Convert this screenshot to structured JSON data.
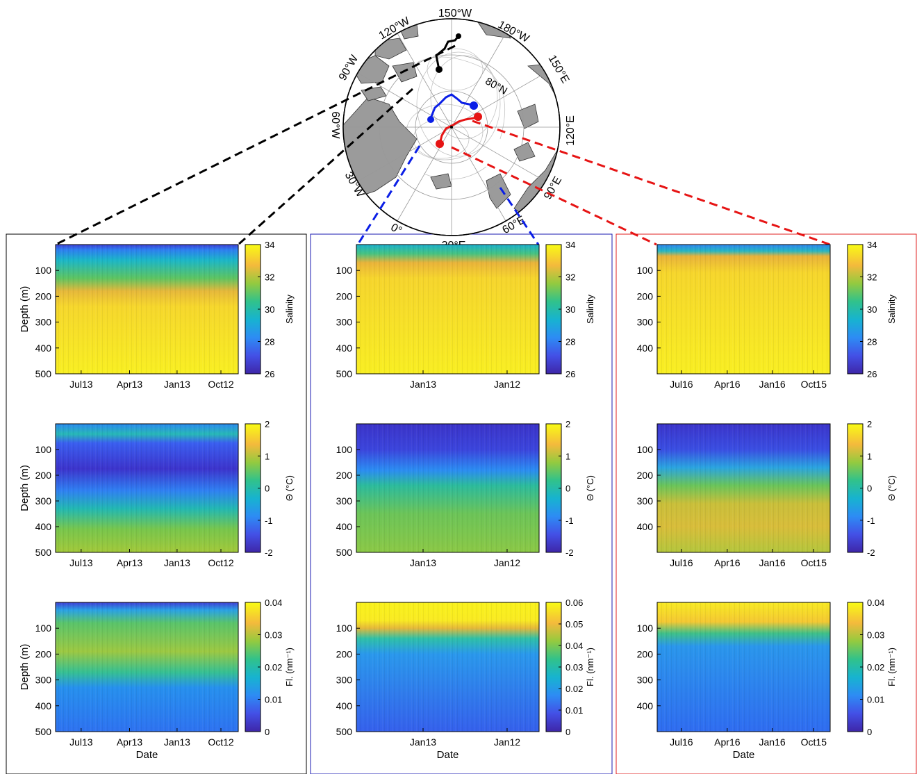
{
  "map": {
    "lon_labels": [
      "150°W",
      "180°W",
      "150°E",
      "120°E",
      "90°E",
      "60°E",
      "30°E",
      "0°",
      "30°W",
      "60°W",
      "90°W",
      "120°W"
    ],
    "lat_label": "80°N"
  },
  "axes_labels": {
    "depth": "Depth (m)",
    "date": "Date"
  },
  "colors": {
    "black_track": "#000000",
    "blue_track": "#0a1ee6",
    "red_track": "#e61414",
    "panel_black": "#000000",
    "panel_blue": "#1a1ab0",
    "panel_red": "#e02020",
    "land": "#9b9b9b"
  },
  "colorbars": {
    "salinity": {
      "label": "Salinity",
      "ticks": [
        "34",
        "32",
        "30",
        "28",
        "26"
      ]
    },
    "theta": {
      "label": "Θ (°C)",
      "ticks": [
        "2",
        "1",
        "0",
        "-1",
        "-2"
      ]
    },
    "fl_a": {
      "label": "Fl. (nm⁻¹)",
      "ticks": [
        "0.04",
        "0.03",
        "0.02",
        "0.01",
        "0"
      ]
    },
    "fl_b": {
      "label": "Fl. (nm⁻¹)",
      "ticks": [
        "0.06",
        "0.05",
        "0.04",
        "0.03",
        "0.02",
        "0.01",
        "0"
      ]
    }
  },
  "chart_data": [
    {
      "type": "heatmap",
      "panel": "black",
      "variable": "Salinity",
      "ylabel": "Depth (m)",
      "xlabel": "",
      "x_ticks": [
        "Jul13",
        "Apr13",
        "Jan13",
        "Oct12"
      ],
      "y_ticks": [
        "100",
        "200",
        "300",
        "400",
        "500"
      ],
      "ylim": [
        0,
        500
      ],
      "clim": [
        26,
        35.5
      ]
    },
    {
      "type": "heatmap",
      "panel": "black",
      "variable": "Θ (°C)",
      "ylabel": "Depth (m)",
      "xlabel": "",
      "x_ticks": [
        "Jul13",
        "Apr13",
        "Jan13",
        "Oct12"
      ],
      "y_ticks": [
        "100",
        "200",
        "300",
        "400",
        "500"
      ],
      "ylim": [
        0,
        500
      ],
      "clim": [
        -2,
        2
      ]
    },
    {
      "type": "heatmap",
      "panel": "black",
      "variable": "Fl. (nm⁻¹)",
      "ylabel": "Depth (m)",
      "xlabel": "Date",
      "x_ticks": [
        "Jul13",
        "Apr13",
        "Jan13",
        "Oct12"
      ],
      "y_ticks": [
        "100",
        "200",
        "300",
        "400",
        "500"
      ],
      "ylim": [
        0,
        500
      ],
      "clim": [
        0,
        0.04
      ]
    },
    {
      "type": "heatmap",
      "panel": "blue",
      "variable": "Salinity",
      "ylabel": "",
      "xlabel": "",
      "x_ticks": [
        "Jan13",
        "Jan12"
      ],
      "y_ticks": [
        "100",
        "200",
        "300",
        "400",
        "500"
      ],
      "ylim": [
        0,
        500
      ],
      "clim": [
        26,
        35.5
      ]
    },
    {
      "type": "heatmap",
      "panel": "blue",
      "variable": "Θ (°C)",
      "ylabel": "",
      "xlabel": "",
      "x_ticks": [
        "Jan13",
        "Jan12"
      ],
      "y_ticks": [
        "100",
        "200",
        "300",
        "400",
        "500"
      ],
      "ylim": [
        0,
        500
      ],
      "clim": [
        -2,
        2
      ]
    },
    {
      "type": "heatmap",
      "panel": "blue",
      "variable": "Fl. (nm⁻¹)",
      "ylabel": "",
      "xlabel": "Date",
      "x_ticks": [
        "Jan13",
        "Jan12"
      ],
      "y_ticks": [
        "100",
        "200",
        "300",
        "400",
        "500"
      ],
      "ylim": [
        0,
        500
      ],
      "clim": [
        0,
        0.06
      ]
    },
    {
      "type": "heatmap",
      "panel": "red",
      "variable": "Salinity",
      "ylabel": "",
      "xlabel": "",
      "x_ticks": [
        "Jul16",
        "Apr16",
        "Jan16",
        "Oct15"
      ],
      "y_ticks": [
        "100",
        "200",
        "300",
        "400"
      ],
      "ylim": [
        0,
        500
      ],
      "clim": [
        26,
        35.5
      ]
    },
    {
      "type": "heatmap",
      "panel": "red",
      "variable": "Θ (°C)",
      "ylabel": "",
      "xlabel": "",
      "x_ticks": [
        "Jul16",
        "Apr16",
        "Jan16",
        "Oct15"
      ],
      "y_ticks": [
        "100",
        "200",
        "300",
        "400"
      ],
      "ylim": [
        0,
        500
      ],
      "clim": [
        -2,
        2
      ]
    },
    {
      "type": "heatmap",
      "panel": "red",
      "variable": "Fl. (nm⁻¹)",
      "ylabel": "",
      "xlabel": "Date",
      "x_ticks": [
        "Jul16",
        "Apr16",
        "Jan16",
        "Oct15"
      ],
      "y_ticks": [
        "100",
        "200",
        "300",
        "400"
      ],
      "ylim": [
        0,
        500
      ],
      "clim": [
        0,
        0.04
      ]
    }
  ]
}
